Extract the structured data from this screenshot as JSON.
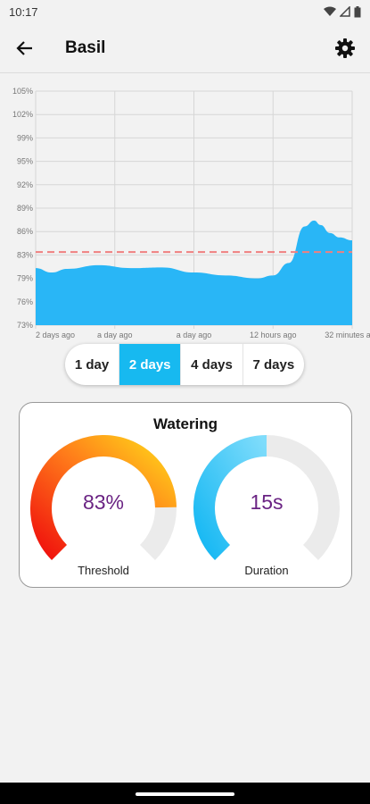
{
  "status_bar": {
    "time": "10:17"
  },
  "app_bar": {
    "title": "Basil"
  },
  "chart_data": {
    "type": "area",
    "y_ticks": [
      "105%",
      "102%",
      "99%",
      "95%",
      "92%",
      "89%",
      "86%",
      "83%",
      "79%",
      "76%",
      "73%"
    ],
    "x_ticks": [
      "2 days ago",
      "a day ago",
      "a day ago",
      "12 hours ago",
      "32 minutes ago"
    ],
    "x": [
      0,
      0.05,
      0.1,
      0.2,
      0.3,
      0.4,
      0.5,
      0.6,
      0.7,
      0.75,
      0.8,
      0.85,
      0.88,
      0.9,
      0.93,
      0.96,
      1.0
    ],
    "y": [
      80.8,
      80.2,
      80.7,
      81.2,
      80.8,
      80.9,
      80.2,
      79.8,
      79.4,
      79.8,
      81.5,
      86.5,
      87.3,
      86.7,
      85.6,
      85.0,
      84.6
    ],
    "threshold": 83,
    "ylim": [
      73,
      105
    ],
    "grid": true,
    "fill_color": "#29b6f6",
    "threshold_color": "#f08080"
  },
  "range": {
    "options": [
      "1 day",
      "2 days",
      "4 days",
      "7 days"
    ],
    "selected": "2 days",
    "accent": "#17b9f0"
  },
  "watering": {
    "title": "Watering",
    "threshold": {
      "value": "83%",
      "label": "Threshold",
      "fraction": 0.83
    },
    "duration": {
      "value": "15s",
      "label": "Duration",
      "fraction": 0.5
    }
  }
}
